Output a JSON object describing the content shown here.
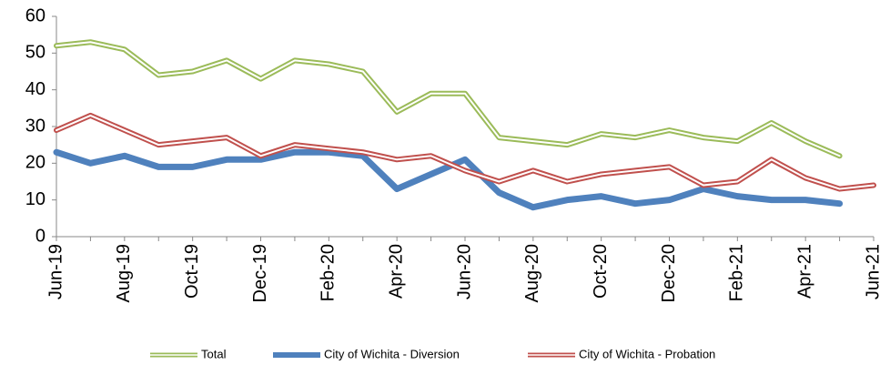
{
  "chart_data": {
    "type": "line",
    "categories": [
      "Jun-19",
      null,
      "Aug-19",
      null,
      "Oct-19",
      null,
      "Dec-19",
      null,
      "Feb-20",
      null,
      "Apr-20",
      null,
      "Jun-20",
      null,
      "Aug-20",
      null,
      "Oct-20",
      null,
      "Dec-20",
      null,
      "Feb-21",
      null,
      "Apr-21",
      null,
      "Jun-21"
    ],
    "ylim": [
      0,
      60
    ],
    "yticks": [
      0,
      10,
      20,
      30,
      40,
      50,
      60
    ],
    "grid": false,
    "legend": "bottom",
    "series": [
      {
        "name": "Total",
        "color": "#9bbb59",
        "style": "double",
        "values": [
          52,
          53,
          51,
          44,
          45,
          48,
          43,
          48,
          47,
          45,
          34,
          39,
          39,
          27,
          26,
          25,
          28,
          27,
          29,
          27,
          26,
          31,
          26,
          22,
          null
        ]
      },
      {
        "name": "City of Wichita - Diversion",
        "color": "#4f81bd",
        "style": "solid",
        "values": [
          23,
          20,
          22,
          19,
          19,
          21,
          21,
          23,
          23,
          22,
          13,
          17,
          21,
          12,
          8,
          10,
          11,
          9,
          10,
          13,
          11,
          10,
          10,
          9,
          null
        ]
      },
      {
        "name": "City of Wichita - Probation",
        "color": "#c0504d",
        "style": "double",
        "values": [
          29,
          33,
          29,
          25,
          26,
          27,
          22,
          25,
          24,
          23,
          21,
          22,
          18,
          15,
          18,
          15,
          17,
          18,
          19,
          14,
          15,
          21,
          16,
          13,
          14
        ]
      }
    ]
  }
}
